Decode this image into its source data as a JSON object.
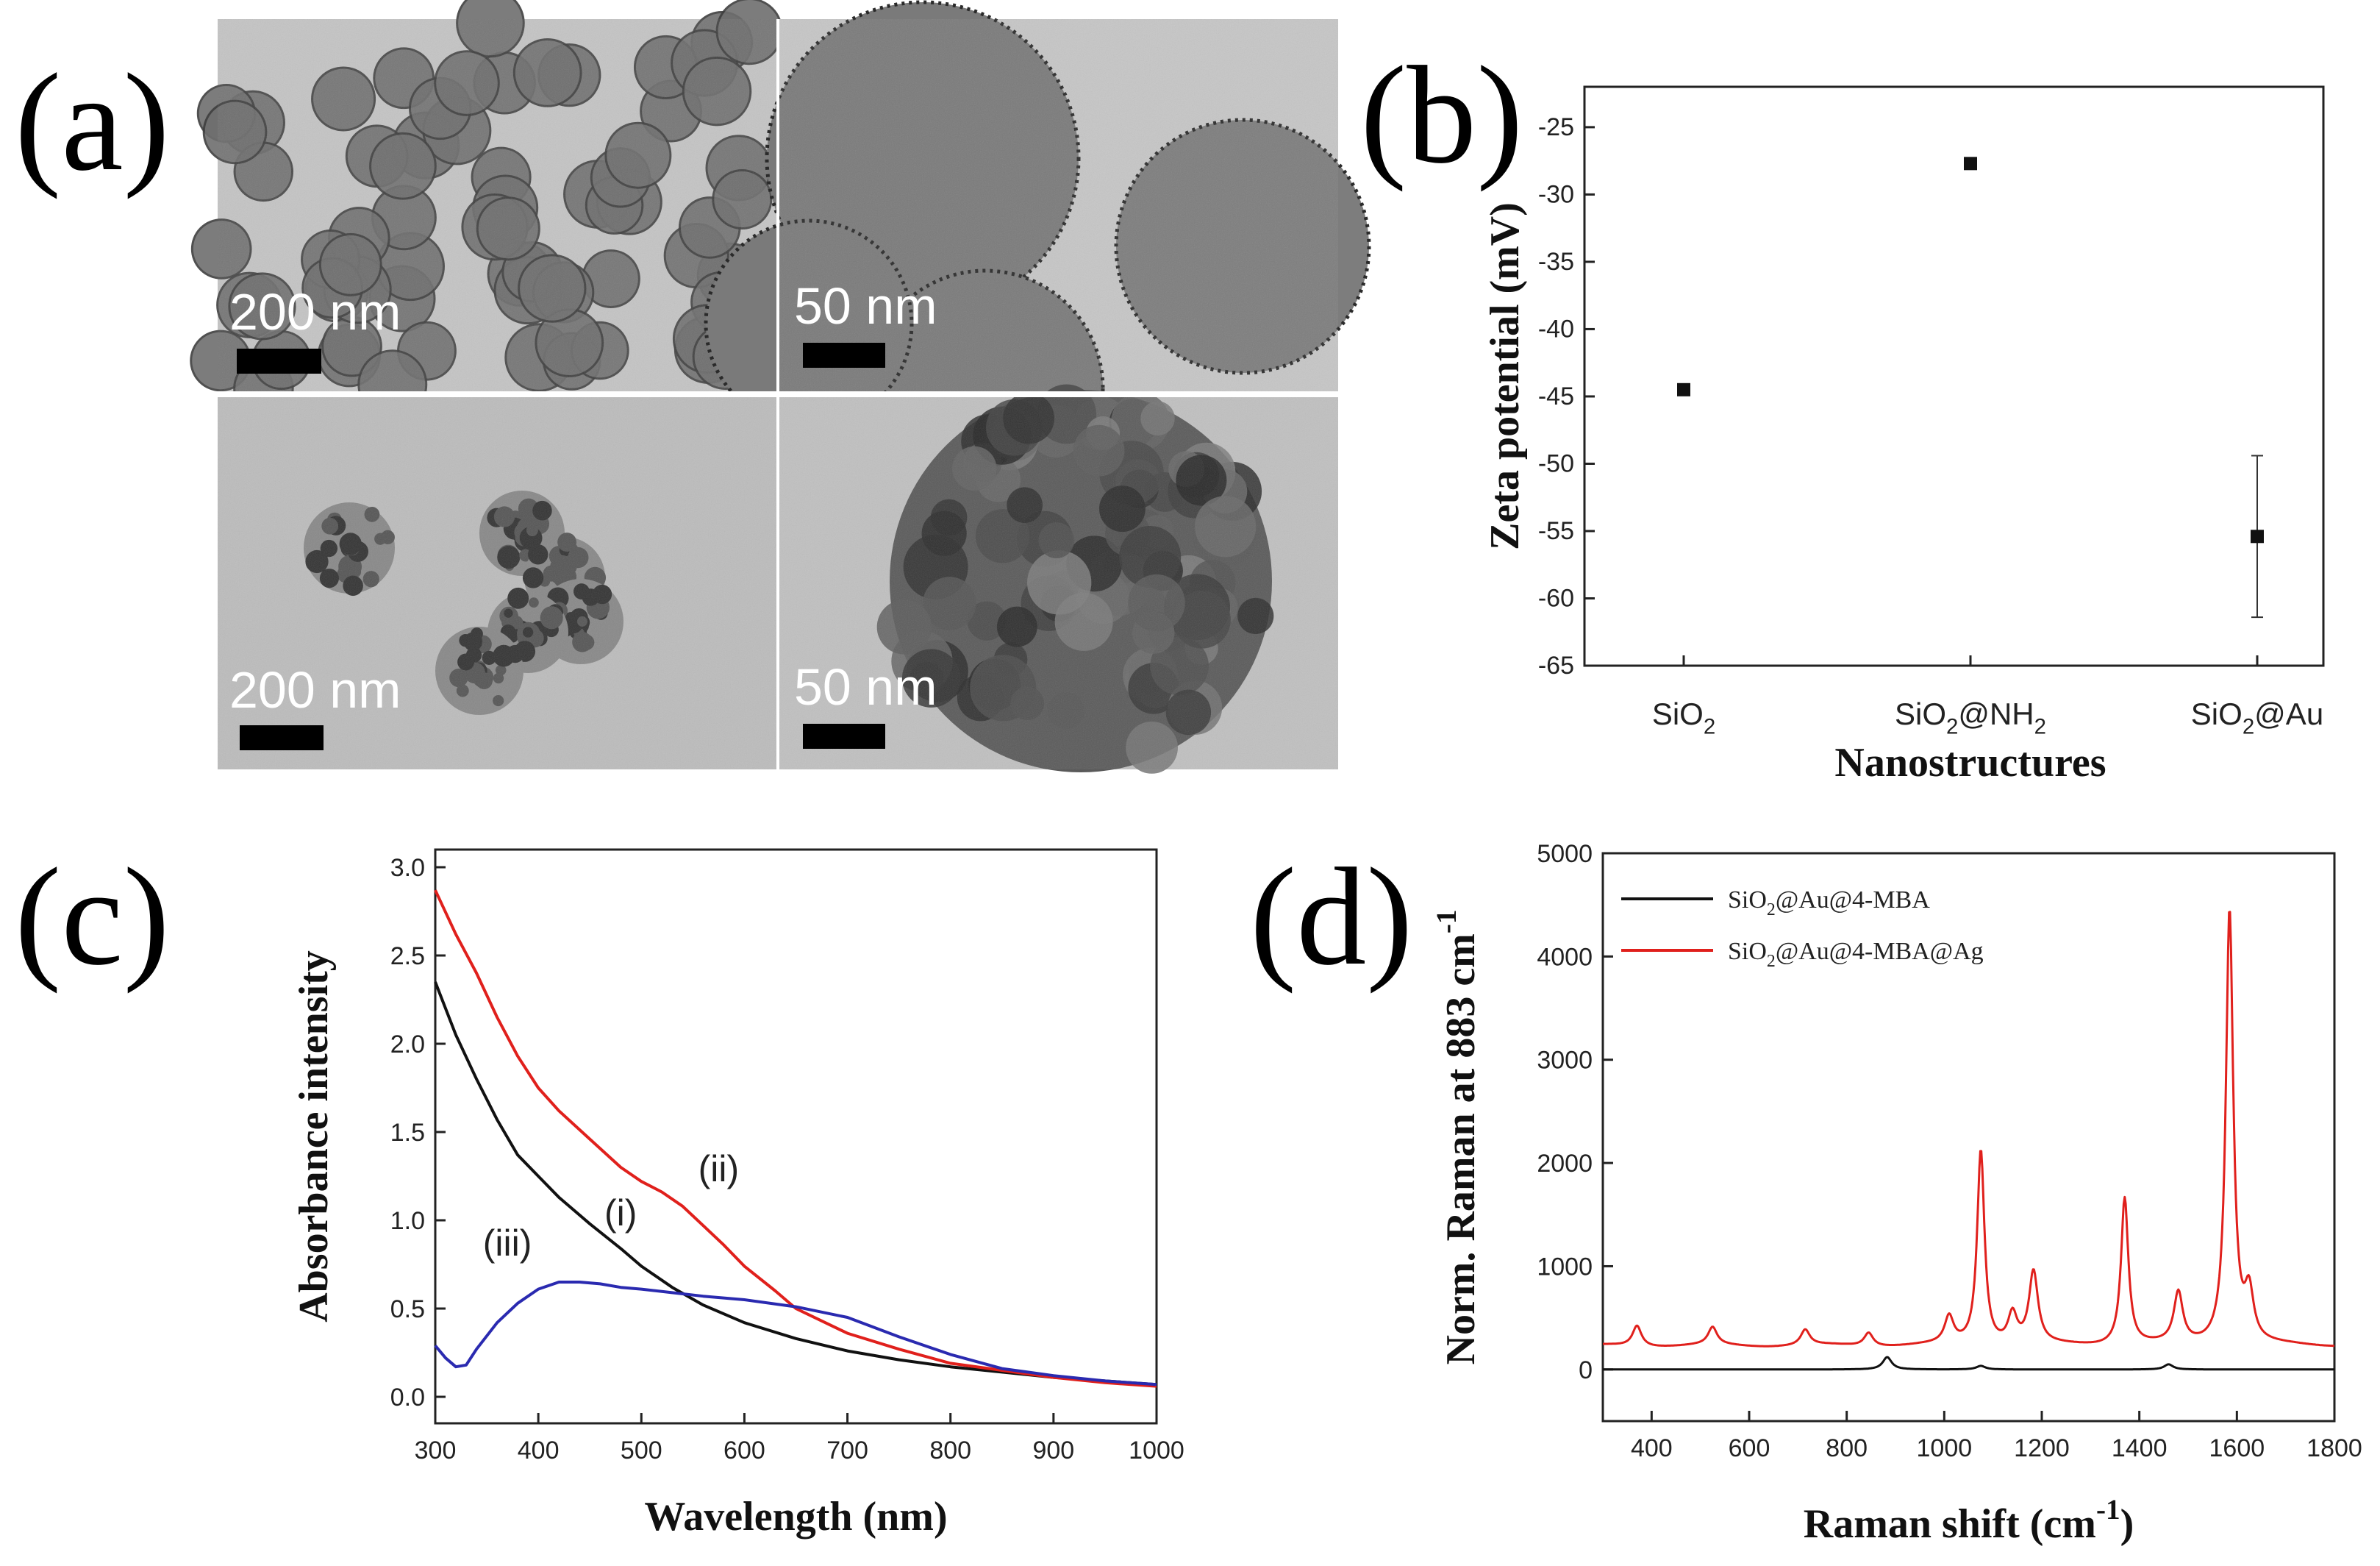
{
  "panels": {
    "a": {
      "label": "(a)",
      "images": [
        {
          "scale_label": "200 nm"
        },
        {
          "scale_label": "50 nm"
        },
        {
          "scale_label": "200 nm"
        },
        {
          "scale_label": "50 nm"
        }
      ]
    },
    "b": {
      "label": "(b)"
    },
    "c": {
      "label": "(c)"
    },
    "d": {
      "label": "(d)"
    }
  },
  "chart_data": [
    {
      "panel": "b",
      "type": "scatter",
      "xlabel": "Nanostructures",
      "ylabel": "Zeta potential (mV)",
      "categories": [
        "SiO2",
        "SiO2@NH2",
        "SiO2@Au"
      ],
      "category_labels": [
        {
          "base": "SiO",
          "sub": "2",
          "rest": ""
        },
        {
          "base": "SiO",
          "sub": "2",
          "rest": "@NH",
          "sub2": "2"
        },
        {
          "base": "SiO",
          "sub": "2",
          "rest": "@Au"
        }
      ],
      "values": [
        -44.5,
        -27.7,
        -55.4
      ],
      "errors": [
        0.2,
        0.4,
        6.0
      ],
      "ylim": [
        -65,
        -22
      ],
      "yticks": [
        -25,
        -30,
        -35,
        -40,
        -45,
        -50,
        -55,
        -60,
        -65
      ],
      "grid": false
    },
    {
      "panel": "c",
      "type": "line",
      "xlabel": "Wavelength (nm)",
      "ylabel": "Absorbance intensity",
      "xlim": [
        300,
        1000
      ],
      "ylim": [
        -0.15,
        3.1
      ],
      "xticks": [
        300,
        400,
        500,
        600,
        700,
        800,
        900,
        1000
      ],
      "yticks": [
        0.0,
        0.5,
        1.0,
        1.5,
        2.0,
        2.5,
        3.0
      ],
      "series": [
        {
          "name": "(i)",
          "color": "#111111",
          "x": [
            300,
            320,
            340,
            360,
            380,
            400,
            420,
            450,
            480,
            500,
            530,
            560,
            600,
            650,
            700,
            750,
            800,
            850,
            900,
            950,
            1000
          ],
          "y": [
            2.35,
            2.05,
            1.8,
            1.57,
            1.37,
            1.25,
            1.13,
            0.98,
            0.84,
            0.74,
            0.62,
            0.52,
            0.42,
            0.33,
            0.26,
            0.21,
            0.17,
            0.14,
            0.11,
            0.09,
            0.07
          ]
        },
        {
          "name": "(ii)",
          "color": "#e0201c",
          "x": [
            300,
            320,
            340,
            360,
            380,
            400,
            420,
            450,
            480,
            500,
            520,
            540,
            560,
            580,
            600,
            630,
            650,
            700,
            750,
            800,
            850,
            900,
            950,
            1000
          ],
          "y": [
            2.87,
            2.62,
            2.4,
            2.15,
            1.93,
            1.75,
            1.62,
            1.46,
            1.3,
            1.22,
            1.16,
            1.08,
            0.97,
            0.86,
            0.74,
            0.6,
            0.5,
            0.36,
            0.27,
            0.19,
            0.15,
            0.11,
            0.08,
            0.06
          ]
        },
        {
          "name": "(iii)",
          "color": "#2a2ab0",
          "x": [
            300,
            310,
            320,
            330,
            340,
            360,
            380,
            400,
            420,
            440,
            460,
            480,
            500,
            530,
            560,
            600,
            650,
            700,
            750,
            800,
            850,
            900,
            950,
            1000
          ],
          "y": [
            0.29,
            0.22,
            0.17,
            0.18,
            0.27,
            0.42,
            0.53,
            0.61,
            0.65,
            0.65,
            0.64,
            0.62,
            0.61,
            0.59,
            0.57,
            0.55,
            0.51,
            0.45,
            0.34,
            0.24,
            0.16,
            0.12,
            0.09,
            0.07
          ]
        }
      ],
      "annotations": [
        {
          "text": "(i)",
          "x": 480,
          "y": 0.97
        },
        {
          "text": "(ii)",
          "x": 575,
          "y": 1.22
        },
        {
          "text": "(iii)",
          "x": 370,
          "y": 0.8
        }
      ]
    },
    {
      "panel": "d",
      "type": "line",
      "xlabel": "Raman shift (cm-1)",
      "xlabel_parts": {
        "base": "Raman shift (cm",
        "sup": "-1",
        "end": ")"
      },
      "ylabel": "Norm. Raman at 883 cm-1",
      "ylabel_parts": {
        "base": "Norm. Raman at 883 cm",
        "sup": "-1"
      },
      "xlim": [
        300,
        1800
      ],
      "ylim": [
        -500,
        5000
      ],
      "xticks": [
        400,
        600,
        800,
        1000,
        1200,
        1400,
        1600,
        1800
      ],
      "yticks": [
        0,
        1000,
        2000,
        3000,
        4000,
        5000
      ],
      "legend_position": "top-left",
      "series": [
        {
          "name": "SiO2@Au@4-MBA",
          "legend_parts": {
            "base": "SiO",
            "sub": "2",
            "rest": "@Au@4-MBA"
          },
          "color": "#111111",
          "peaks": [
            {
              "x": 883,
              "y": 120
            },
            {
              "x": 1075,
              "y": 35
            },
            {
              "x": 1460,
              "y": 50
            }
          ],
          "baseline": 0
        },
        {
          "name": "SiO2@Au@4-MBA@Ag",
          "legend_parts": {
            "base": "SiO",
            "sub": "2",
            "rest": "@Au@4-MBA@Ag"
          },
          "color": "#e0201c",
          "peaks": [
            {
              "x": 370,
              "y": 430
            },
            {
              "x": 525,
              "y": 400
            },
            {
              "x": 715,
              "y": 380
            },
            {
              "x": 845,
              "y": 360
            },
            {
              "x": 1010,
              "y": 490
            },
            {
              "x": 1075,
              "y": 2120
            },
            {
              "x": 1140,
              "y": 520
            },
            {
              "x": 1183,
              "y": 930
            },
            {
              "x": 1370,
              "y": 1660
            },
            {
              "x": 1480,
              "y": 720
            },
            {
              "x": 1585,
              "y": 4450
            },
            {
              "x": 1625,
              "y": 700
            }
          ],
          "baseline": 230
        }
      ]
    }
  ]
}
